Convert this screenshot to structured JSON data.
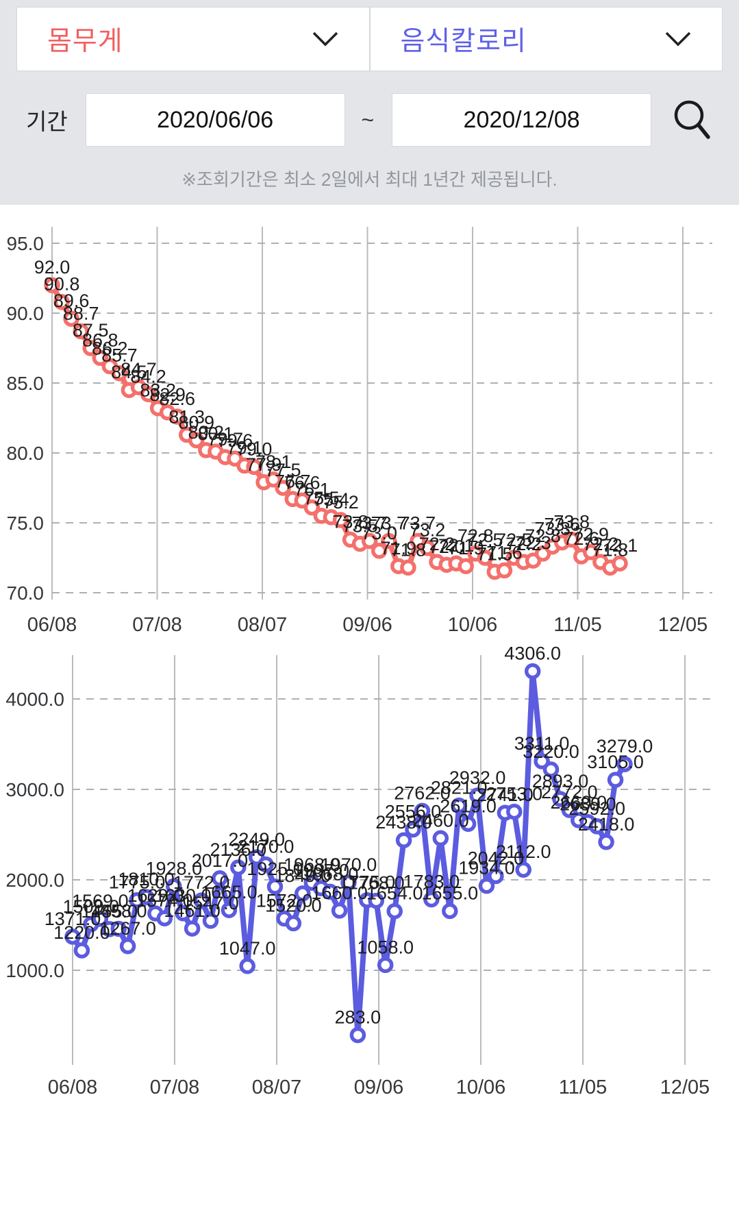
{
  "header": {
    "metric_left": {
      "label": "몸무게",
      "color": "#f1605f"
    },
    "metric_right": {
      "label": "음식칼로리",
      "color": "#5f5fe8"
    },
    "period_label": "기간",
    "date_from": "2020/06/06",
    "date_separator": "~",
    "date_to": "2020/12/08",
    "note": "※조회기간은 최소 2일에서 최대 1년간 제공됩니다."
  },
  "chart_data": [
    {
      "type": "line",
      "name": "몸무게",
      "color": "#f4706b",
      "x_ticks": [
        "06/08",
        "07/08",
        "08/07",
        "09/06",
        "10/06",
        "11/05",
        "12/05"
      ],
      "y_ticks": [
        70.0,
        75.0,
        80.0,
        85.0,
        90.0,
        95.0
      ],
      "ylim": [
        68.5,
        96.5
      ],
      "grid": true,
      "point_labels": true,
      "values": [
        92.0,
        90.8,
        89.6,
        88.7,
        87.5,
        86.8,
        86.2,
        85.7,
        84.5,
        84.7,
        84.2,
        83.2,
        82.9,
        82.6,
        81.3,
        80.9,
        80.2,
        80.1,
        79.7,
        79.6,
        79.1,
        79.0,
        77.9,
        78.1,
        77.5,
        76.7,
        76.6,
        76.1,
        75.5,
        75.4,
        75.2,
        73.8,
        73.5,
        73.7,
        73.0,
        73.7,
        71.9,
        71.8,
        73.7,
        73.2,
        72.2,
        72.0,
        72.1,
        71.9,
        72.8,
        72.5,
        71.5,
        71.6,
        72.5,
        72.2,
        72.3,
        72.8,
        73.3,
        73.6,
        73.8,
        72.6,
        72.9,
        72.2,
        71.8,
        72.1
      ]
    },
    {
      "type": "line",
      "name": "음식칼로리",
      "color": "#5b5cdf",
      "x_ticks": [
        "06/08",
        "07/08",
        "08/07",
        "09/06",
        "10/06",
        "11/05",
        "12/05"
      ],
      "y_ticks": [
        1000.0,
        2000.0,
        3000.0,
        4000.0
      ],
      "ylim": [
        150,
        4450
      ],
      "grid": true,
      "point_labels": true,
      "values": [
        1371.0,
        1220.0,
        1509.0,
        1569.0,
        1455.0,
        1458.0,
        1267.0,
        1775.0,
        1810.0,
        1629.0,
        1574.0,
        1928.0,
        1630.0,
        1461.0,
        1772.0,
        1547.0,
        2017.0,
        1665.0,
        2136.0,
        1047.0,
        2249.0,
        2170.0,
        1925.0,
        1572.0,
        1520.0,
        1849.0,
        1968.0,
        1907.0,
        1868.0,
        1660.0,
        1970.0,
        283.0,
        1775.0,
        1768.0,
        1058.0,
        1654.0,
        2438.0,
        2556.0,
        2762.0,
        1783.0,
        2460.0,
        1655.0,
        2821.0,
        2619.0,
        2932.0,
        1934.0,
        2042.0,
        2741.0,
        2753.0,
        2112.0,
        4306.0,
        3311.0,
        3220.0,
        2893.0,
        2772.0,
        2660.0,
        2639.0,
        2592.0,
        2418.0,
        3105.0,
        3279.0
      ]
    }
  ]
}
